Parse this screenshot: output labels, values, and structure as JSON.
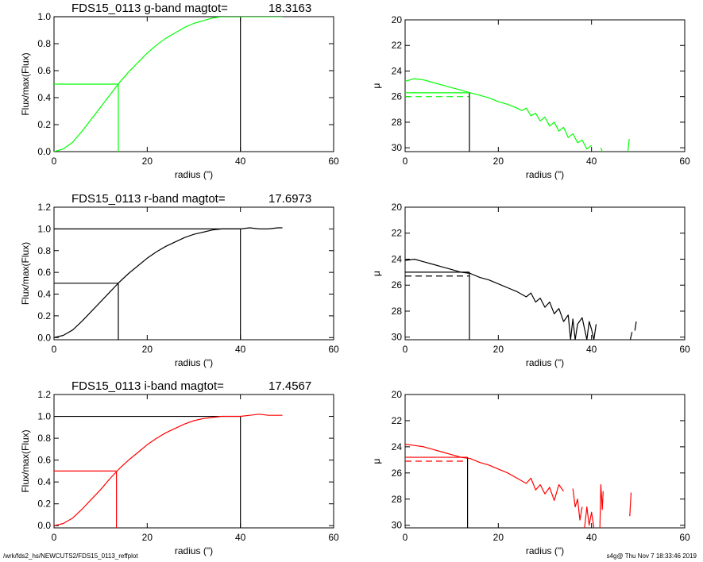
{
  "footer": {
    "path": "/wrk/fds2_hs/NEWCUTS2/FDS15_0113_reffplot",
    "stamp": "s4g@  Thu Nov  7 18:33:46 2019"
  },
  "chart_data": [
    {
      "type": "line",
      "band": "g",
      "title_prefix": "FDS15_0113 g-band  magtot=",
      "title_value": "18.3163",
      "xlabel": "radius (\")",
      "ylabel": "Flux/max(Flux)",
      "xlim": [
        0,
        60
      ],
      "ylim": [
        0,
        1.0
      ],
      "xticks": [
        "0",
        "20",
        "40",
        "60"
      ],
      "yticks": [
        "0.0",
        "0.2",
        "0.4",
        "0.6",
        "0.8",
        "1.0"
      ],
      "color": "#00ff00",
      "half_light_radius": 13.8,
      "total_radius": 40,
      "series": [
        {
          "x": [
            0,
            2,
            4,
            6,
            8,
            10,
            12,
            14,
            16,
            18,
            20,
            22,
            24,
            26,
            28,
            30,
            32,
            34,
            36,
            38,
            40,
            42,
            44,
            46,
            48,
            49
          ],
          "y": [
            0.0,
            0.02,
            0.07,
            0.15,
            0.24,
            0.33,
            0.42,
            0.51,
            0.59,
            0.66,
            0.73,
            0.79,
            0.84,
            0.88,
            0.92,
            0.95,
            0.97,
            0.99,
            1.0,
            1.0,
            1.0,
            1.0,
            1.0,
            1.0,
            1.0,
            1.0
          ]
        }
      ]
    },
    {
      "type": "line",
      "band": "g",
      "title_prefix": "",
      "title_value": "",
      "xlabel": "radius (\")",
      "ylabel": "μ",
      "xlim": [
        0,
        60
      ],
      "ylim": [
        30.3,
        20
      ],
      "xticks": [
        "0",
        "20",
        "40",
        "60"
      ],
      "yticks": [
        "20",
        "22",
        "24",
        "26",
        "28",
        "30"
      ],
      "color": "#00ff00",
      "half_light_radius": 13.8,
      "mu_solid": 25.7,
      "mu_dashed": 26.0,
      "series": [
        {
          "x": [
            0,
            2,
            4,
            6,
            8,
            10,
            12,
            14,
            16,
            18,
            20,
            22,
            24,
            25,
            26,
            27,
            28,
            29,
            30,
            31,
            32,
            33,
            34,
            35,
            36,
            37,
            38,
            39,
            40
          ],
          "y": [
            24.8,
            24.6,
            24.7,
            24.9,
            25.1,
            25.3,
            25.5,
            25.7,
            25.9,
            26.1,
            26.4,
            26.6,
            26.9,
            27.1,
            26.9,
            27.5,
            27.3,
            27.9,
            27.6,
            28.3,
            28.0,
            28.7,
            28.4,
            29.2,
            28.9,
            29.6,
            29.4,
            30.1,
            29.8
          ]
        },
        {
          "x": [
            42,
            42.3
          ],
          "y": [
            30.0,
            30.3
          ]
        },
        {
          "x": [
            47.8,
            48.1
          ],
          "y": [
            30.3,
            29.3
          ]
        }
      ]
    },
    {
      "type": "line",
      "band": "r",
      "title_prefix": "FDS15_0113 r-band  magtot=",
      "title_value": "17.6973",
      "xlabel": "radius (\")",
      "ylabel": "Flux/max(Flux)",
      "xlim": [
        0,
        60
      ],
      "ylim": [
        -0.02,
        1.2
      ],
      "xticks": [
        "0",
        "20",
        "40",
        "60"
      ],
      "yticks": [
        "0.0",
        "0.2",
        "0.4",
        "0.6",
        "0.8",
        "1.0",
        "1.2"
      ],
      "color": "#000000",
      "half_light_radius": 13.8,
      "total_radius": 40,
      "series": [
        {
          "x": [
            0,
            2,
            4,
            6,
            8,
            10,
            12,
            14,
            16,
            18,
            20,
            22,
            24,
            26,
            28,
            30,
            32,
            34,
            36,
            38,
            40,
            42,
            44,
            46,
            48,
            49
          ],
          "y": [
            0.0,
            0.02,
            0.07,
            0.15,
            0.24,
            0.33,
            0.42,
            0.51,
            0.59,
            0.66,
            0.73,
            0.79,
            0.84,
            0.88,
            0.92,
            0.95,
            0.97,
            0.99,
            1.0,
            1.0,
            1.0,
            1.01,
            1.0,
            1.0,
            1.01,
            1.01
          ]
        }
      ]
    },
    {
      "type": "line",
      "band": "r",
      "title_prefix": "",
      "title_value": "",
      "xlabel": "radius (\")",
      "ylabel": "μ",
      "xlim": [
        0,
        60
      ],
      "ylim": [
        30.2,
        20
      ],
      "xticks": [
        "0",
        "20",
        "40",
        "60"
      ],
      "yticks": [
        "20",
        "22",
        "24",
        "26",
        "28",
        "30"
      ],
      "color": "#000000",
      "half_light_radius": 13.8,
      "mu_solid": 25.0,
      "mu_dashed": 25.3,
      "series": [
        {
          "x": [
            0,
            2,
            4,
            6,
            8,
            10,
            12,
            14,
            16,
            18,
            20,
            22,
            24,
            26,
            27,
            28,
            29,
            30,
            31,
            32,
            33,
            34,
            35,
            35.5,
            36,
            36.5,
            37,
            38,
            39,
            39.5,
            40,
            40.5,
            41
          ],
          "y": [
            24.1,
            24.0,
            24.2,
            24.4,
            24.6,
            24.8,
            25.0,
            25.1,
            25.4,
            25.6,
            25.9,
            26.2,
            26.5,
            26.9,
            26.6,
            27.3,
            27.0,
            27.7,
            27.3,
            28.2,
            27.8,
            28.8,
            28.3,
            30.2,
            28.6,
            30.2,
            29.0,
            28.5,
            30.2,
            28.8,
            29.4,
            30.2,
            29.0
          ]
        },
        {
          "x": [
            48.3,
            48.7
          ],
          "y": [
            30.2,
            29.6
          ]
        },
        {
          "x": [
            49.3,
            49.6
          ],
          "y": [
            29.5,
            28.8
          ]
        }
      ]
    },
    {
      "type": "line",
      "band": "i",
      "title_prefix": "FDS15_0113 i-band  magtot=",
      "title_value": "17.4567",
      "xlabel": "radius (\")",
      "ylabel": "Flux/max(Flux)",
      "xlim": [
        0,
        60
      ],
      "ylim": [
        -0.02,
        1.2
      ],
      "xticks": [
        "0",
        "20",
        "40",
        "60"
      ],
      "yticks": [
        "0.0",
        "0.2",
        "0.4",
        "0.6",
        "0.8",
        "1.0",
        "1.2"
      ],
      "color": "#ff0000",
      "half_light_radius": 13.4,
      "total_radius": 40,
      "series": [
        {
          "x": [
            0,
            2,
            4,
            6,
            8,
            10,
            12,
            14,
            16,
            18,
            20,
            22,
            24,
            26,
            28,
            30,
            32,
            34,
            36,
            38,
            40,
            42,
            44,
            46,
            48,
            49
          ],
          "y": [
            0.0,
            0.02,
            0.07,
            0.15,
            0.24,
            0.33,
            0.43,
            0.52,
            0.6,
            0.67,
            0.74,
            0.8,
            0.85,
            0.89,
            0.93,
            0.96,
            0.98,
            0.99,
            1.0,
            1.0,
            1.0,
            1.01,
            1.02,
            1.01,
            1.01,
            1.01
          ]
        }
      ]
    },
    {
      "type": "line",
      "band": "i",
      "title_prefix": "",
      "title_value": "",
      "xlabel": "radius (\")",
      "ylabel": "μ",
      "xlim": [
        0,
        60
      ],
      "ylim": [
        30.2,
        20
      ],
      "xticks": [
        "0",
        "20",
        "40",
        "60"
      ],
      "yticks": [
        "20",
        "22",
        "24",
        "26",
        "28",
        "30"
      ],
      "color": "#ff0000",
      "half_light_radius": 13.4,
      "mu_solid": 24.8,
      "mu_dashed": 25.1,
      "series": [
        {
          "x": [
            0,
            2,
            4,
            6,
            8,
            10,
            12,
            14,
            16,
            18,
            20,
            22,
            24,
            26,
            27,
            28,
            29,
            30,
            31,
            32,
            33,
            34
          ],
          "y": [
            23.8,
            23.9,
            24.0,
            24.2,
            24.4,
            24.6,
            24.8,
            24.9,
            25.2,
            25.4,
            25.7,
            26.0,
            26.4,
            26.8,
            26.4,
            27.3,
            26.9,
            27.6,
            27.1,
            28.1,
            26.9,
            27.4
          ]
        },
        {
          "x": [
            36,
            36.5,
            37,
            37.5,
            38
          ],
          "y": [
            27.2,
            28.6,
            28.0,
            29.6,
            28.6
          ]
        },
        {
          "x": [
            38.5,
            39,
            39.5,
            40,
            40.5
          ],
          "y": [
            30.2,
            28.6,
            30.0,
            29.0,
            30.2
          ]
        },
        {
          "x": [
            41.8,
            42,
            42.3,
            42.5
          ],
          "y": [
            30.2,
            26.9,
            28.8,
            27.4
          ]
        },
        {
          "x": [
            48.2,
            48.5
          ],
          "y": [
            29.3,
            27.5
          ]
        }
      ]
    }
  ]
}
